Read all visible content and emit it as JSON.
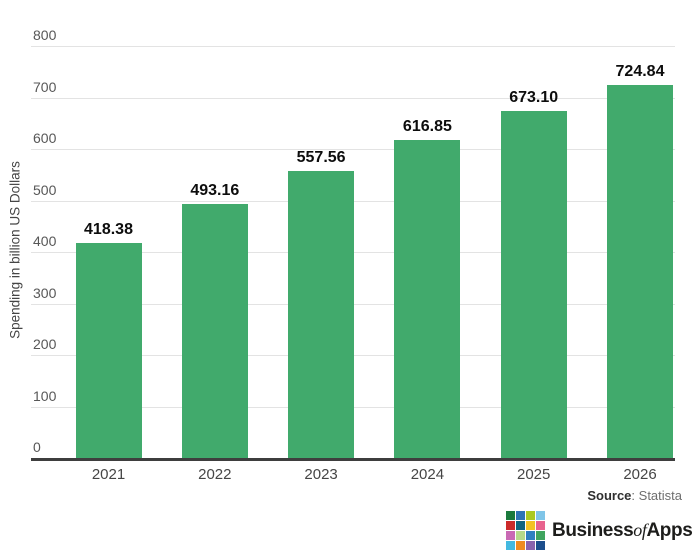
{
  "chart_data": {
    "type": "bar",
    "categories": [
      "2021",
      "2022",
      "2023",
      "2024",
      "2025",
      "2026"
    ],
    "values": [
      418.38,
      493.16,
      557.56,
      616.85,
      673.1,
      724.84
    ],
    "value_labels": [
      "418.38",
      "493.16",
      "557.56",
      "616.85",
      "673.10",
      "724.84"
    ],
    "title": "",
    "xlabel": "",
    "ylabel": "Spending in billion US Dollars",
    "ylim": [
      0,
      800
    ],
    "yticks": [
      0,
      100,
      200,
      300,
      400,
      500,
      600,
      700,
      800
    ],
    "grid": true,
    "legend": "none",
    "bar_color": "#41aa6c"
  },
  "colors": {
    "background": "#ffffff",
    "bar": "#41aa6c",
    "gridline": "#e3e3e3",
    "axis_line": "#3e3e3e",
    "tick_label": "#575757",
    "value_label": "#0d0d0d"
  },
  "footer": {
    "source_label": "Source",
    "source_rest": ": Statista"
  },
  "branding": {
    "name_part_1": "Business",
    "name_part_2": "of",
    "name_part_3": "Apps",
    "grid_colors": [
      "#1b7a3d",
      "#2d74b5",
      "#aac922",
      "#7fc5e8",
      "#cc2a2a",
      "#11647e",
      "#f2c224",
      "#e8638e",
      "#c969b4",
      "#b5d98a",
      "#2f7fc1",
      "#3fa45f",
      "#43b9e0",
      "#ef8b1f",
      "#8a63ad",
      "#1c4e8c"
    ]
  }
}
